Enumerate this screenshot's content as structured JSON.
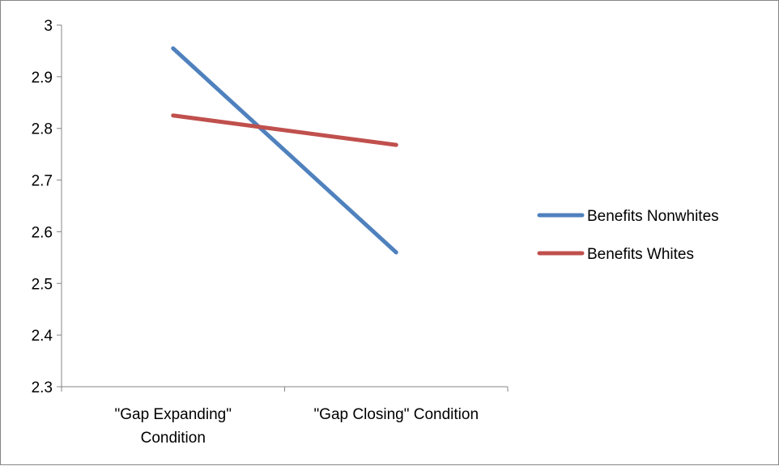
{
  "chart_data": {
    "type": "line",
    "title": "",
    "xlabel": "",
    "ylabel": "",
    "categories": [
      [
        "\"Gap Expanding\"",
        "Condition"
      ],
      [
        "\"Gap Closing\" Condition"
      ]
    ],
    "ylim": [
      2.3,
      3.0
    ],
    "yticks": [
      "2.3",
      "2.4",
      "2.5",
      "2.6",
      "2.7",
      "2.8",
      "2.9",
      "3"
    ],
    "grid": false,
    "legend_position": "right",
    "series": [
      {
        "name": "Benefits Nonwhites",
        "color": "#4f81bd",
        "values": [
          2.955,
          2.56
        ]
      },
      {
        "name": "Benefits Whites",
        "color": "#c0504d",
        "values": [
          2.825,
          2.768
        ]
      }
    ]
  }
}
